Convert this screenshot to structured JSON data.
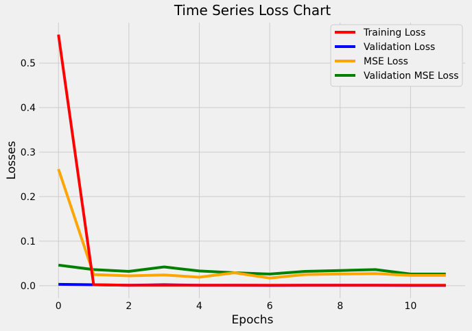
{
  "chart_data": {
    "type": "line",
    "title": "Time Series Loss Chart",
    "xlabel": "Epochs",
    "ylabel": "Losses",
    "xlim": [
      -0.55,
      11.55
    ],
    "ylim": [
      -0.028,
      0.591
    ],
    "x_ticks": [
      0,
      2,
      4,
      6,
      8,
      10
    ],
    "x_tick_labels": [
      "0",
      "2",
      "4",
      "6",
      "8",
      "10"
    ],
    "y_ticks": [
      0.0,
      0.1,
      0.2,
      0.3,
      0.4,
      0.5
    ],
    "y_tick_labels": [
      "0.0",
      "0.1",
      "0.2",
      "0.3",
      "0.4",
      "0.5"
    ],
    "grid": true,
    "legend_position": "top-right",
    "x": [
      0,
      1,
      2,
      3,
      4,
      5,
      6,
      7,
      8,
      9,
      10,
      11
    ],
    "series": [
      {
        "name": "Training Loss",
        "color": "#ff0000",
        "values": [
          0.564,
          0.002,
          0.001,
          0.001,
          0.001,
          0.001,
          0.001,
          0.001,
          0.001,
          0.001,
          0.001,
          0.001
        ]
      },
      {
        "name": "Validation Loss",
        "color": "#0000ff",
        "values": [
          0.003,
          0.002,
          0.001,
          0.002,
          0.001,
          0.001,
          0.0005,
          0.001,
          0.001,
          0.001,
          0.0005,
          0.0005
        ]
      },
      {
        "name": "MSE Loss",
        "color": "#ffa500",
        "values": [
          0.262,
          0.025,
          0.022,
          0.024,
          0.019,
          0.029,
          0.017,
          0.025,
          0.026,
          0.027,
          0.023,
          0.023
        ]
      },
      {
        "name": "Validation MSE Loss",
        "color": "#008000",
        "values": [
          0.046,
          0.036,
          0.032,
          0.042,
          0.033,
          0.029,
          0.026,
          0.032,
          0.034,
          0.036,
          0.026,
          0.026
        ]
      }
    ]
  }
}
